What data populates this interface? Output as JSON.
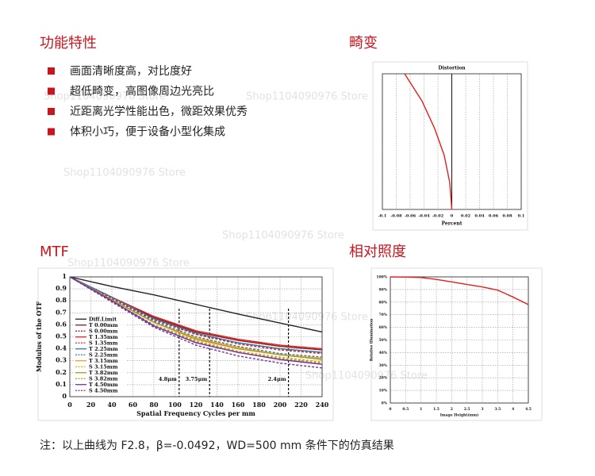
{
  "features": {
    "title": "功能特性",
    "items": [
      "画面清晰度高，对比度好",
      "超低畸变，高图像周边光亮比",
      "近距离光学性能出色，微距效果优秀",
      "体积小巧，便于设备小型化集成"
    ]
  },
  "distortion_section": {
    "title": "畸变"
  },
  "mtf_section": {
    "title": "MTF"
  },
  "illumination_section": {
    "title": "相对照度"
  },
  "watermark": "Shop1104090976 Store",
  "note": "注：以上曲线为 F2.8，β=-0.0492，WD=500 mm 条件下的仿真结果",
  "chart_data": [
    {
      "type": "line",
      "orientation": "horizontal",
      "title": "Distortion",
      "xlabel": "Percent",
      "values": [
        0,
        -0.003,
        -0.011,
        -0.025,
        -0.043,
        -0.068
      ],
      "y": [
        0,
        0.2,
        0.4,
        0.6,
        0.8,
        1
      ],
      "color": "#e02020",
      "xlim": [
        -0.1,
        0.1
      ],
      "xticks": [
        -0.1,
        -0.08,
        -0.06,
        -0.04,
        -0.02,
        0,
        0.02,
        0.04,
        0.06,
        0.08,
        0.1
      ],
      "ylim": [
        0,
        1
      ],
      "grid": true
    },
    {
      "type": "line",
      "xlabel": "Spatial Frequency Cycles per mm",
      "ylabel": "Modulus of the OTF",
      "x": [
        0,
        40,
        80,
        120,
        160,
        200,
        240
      ],
      "series": [
        {
          "name": "Diff.Limit",
          "color": "#222222",
          "dashed": false,
          "values": [
            1,
            0.92,
            0.85,
            0.77,
            0.69,
            0.615,
            0.54
          ]
        },
        {
          "name": "T 0.00mm",
          "color": "#8b1a1a",
          "dashed": false,
          "values": [
            1,
            0.83,
            0.66,
            0.54,
            0.47,
            0.42,
            0.39
          ]
        },
        {
          "name": "S 0.00mm",
          "color": "#8b1a1a",
          "dashed": true,
          "values": [
            1,
            0.82,
            0.65,
            0.52,
            0.45,
            0.4,
            0.37
          ]
        },
        {
          "name": "T 1.35mm",
          "color": "#e02020",
          "dashed": false,
          "values": [
            1,
            0.83,
            0.67,
            0.55,
            0.48,
            0.43,
            0.4
          ]
        },
        {
          "name": "S 1.35mm",
          "color": "#e02020",
          "dashed": true,
          "values": [
            1,
            0.82,
            0.64,
            0.52,
            0.44,
            0.39,
            0.36
          ]
        },
        {
          "name": "T 2.25mm",
          "color": "#2a7ab0",
          "dashed": false,
          "values": [
            1,
            0.83,
            0.65,
            0.53,
            0.45,
            0.4,
            0.37
          ]
        },
        {
          "name": "S 2.25mm",
          "color": "#2a7ab0",
          "dashed": true,
          "values": [
            1,
            0.81,
            0.63,
            0.5,
            0.42,
            0.36,
            0.33
          ]
        },
        {
          "name": "T 3.15mm",
          "color": "#f0a020",
          "dashed": false,
          "values": [
            1,
            0.81,
            0.62,
            0.49,
            0.41,
            0.35,
            0.32
          ]
        },
        {
          "name": "S 3.15mm",
          "color": "#f0a020",
          "dashed": true,
          "values": [
            1,
            0.8,
            0.6,
            0.47,
            0.38,
            0.33,
            0.29
          ]
        },
        {
          "name": "T 3.82mm",
          "color": "#a89a20",
          "dashed": false,
          "values": [
            1,
            0.81,
            0.62,
            0.48,
            0.4,
            0.35,
            0.31
          ]
        },
        {
          "name": "S 3.82mm",
          "color": "#a89a20",
          "dashed": true,
          "values": [
            1,
            0.8,
            0.6,
            0.46,
            0.37,
            0.32,
            0.28
          ]
        },
        {
          "name": "T 4.50mm",
          "color": "#7030a0",
          "dashed": false,
          "values": [
            1,
            0.8,
            0.59,
            0.45,
            0.37,
            0.31,
            0.27
          ]
        },
        {
          "name": "S 4.50mm",
          "color": "#7030a0",
          "dashed": true,
          "values": [
            1,
            0.79,
            0.58,
            0.43,
            0.34,
            0.28,
            0.24
          ]
        }
      ],
      "annotations": [
        {
          "text": "4.8μm",
          "x": 104
        },
        {
          "text": "3.75μm",
          "x": 133
        },
        {
          "text": "2.4μm",
          "x": 208
        }
      ],
      "xlim": [
        0,
        240
      ],
      "xticks": [
        0,
        20,
        40,
        60,
        80,
        100,
        120,
        140,
        160,
        180,
        200,
        220,
        240
      ],
      "ylim": [
        0,
        1
      ],
      "yticks": [
        0,
        0.1,
        0.2,
        0.3,
        0.4,
        0.5,
        0.6,
        0.7,
        0.8,
        0.9,
        1
      ],
      "grid": true,
      "legend": "lower left"
    },
    {
      "type": "line",
      "xlabel": "Image Height(mm)",
      "ylabel": "Relative Illumination",
      "color": "#e02020",
      "x": [
        0,
        0.5,
        1,
        1.5,
        2,
        2.5,
        3,
        3.5,
        4,
        4.5
      ],
      "values": [
        100,
        99.8,
        99.5,
        98,
        96,
        94,
        92,
        89.5,
        84,
        78
      ],
      "xlim": [
        0,
        4.5
      ],
      "xticks": [
        0,
        0.5,
        1,
        1.5,
        2,
        2.5,
        3,
        3.5,
        4,
        4.5
      ],
      "ylim": [
        0,
        100
      ],
      "yticks": [
        {
          "value": 0,
          "label": "0%"
        },
        {
          "value": 10,
          "label": "10%"
        },
        {
          "value": 20,
          "label": "20%"
        },
        {
          "value": 30,
          "label": "30%"
        },
        {
          "value": 40,
          "label": "40%"
        },
        {
          "value": 50,
          "label": "50%"
        },
        {
          "value": 60,
          "label": "60%"
        },
        {
          "value": 70,
          "label": "70%"
        },
        {
          "value": 80,
          "label": "80%"
        },
        {
          "value": 90,
          "label": "90%"
        },
        {
          "value": 100,
          "label": "100%"
        }
      ],
      "grid": true
    }
  ]
}
